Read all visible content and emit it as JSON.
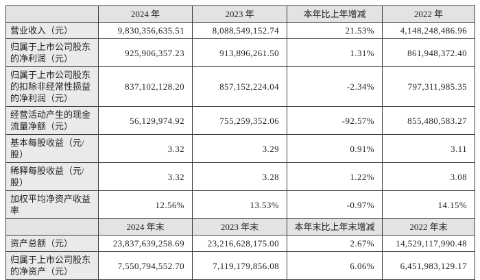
{
  "colors": {
    "border": "#3a3a3a",
    "header_bg": "#e3e3e3",
    "label_bg": "#eaeaea",
    "cell_bg": "#ffffff",
    "page_bg": "#ffffff"
  },
  "table": {
    "header1": {
      "col0": "",
      "cols": [
        "2024 年",
        "2023 年",
        "本年比上年增减",
        "2022 年"
      ]
    },
    "section1_rows": [
      {
        "label": "营业收入（元）",
        "values": [
          "9,830,356,635.51",
          "8,088,549,152.74",
          "21.53%",
          "4,148,248,486.96"
        ]
      },
      {
        "label": "归属于上市公司股东的净利润（元）",
        "values": [
          "925,906,357.23",
          "913,896,261.50",
          "1.31%",
          "861,948,372.40"
        ]
      },
      {
        "label": "归属于上市公司股东的扣除非经常性损益的净利润（元）",
        "values": [
          "837,102,128.20",
          "857,152,224.04",
          "-2.34%",
          "797,311,985.35"
        ]
      },
      {
        "label": "经营活动产生的现金流量净额（元）",
        "values": [
          "56,129,974.92",
          "755,259,352.06",
          "-92.57%",
          "855,480,583.27"
        ]
      },
      {
        "label": "基本每股收益（元/股）",
        "values": [
          "3.32",
          "3.29",
          "0.91%",
          "3.11"
        ]
      },
      {
        "label": "稀释每股收益（元/股）",
        "values": [
          "3.32",
          "3.28",
          "1.22%",
          "3.08"
        ]
      },
      {
        "label": "加权平均净资产收益率",
        "values": [
          "12.56%",
          "13.53%",
          "-0.97%",
          "14.15%"
        ]
      }
    ],
    "header2": {
      "col0": "",
      "cols": [
        "2024 年末",
        "2023 年末",
        "本年末比上年末增减",
        "2022 年末"
      ]
    },
    "section2_rows": [
      {
        "label": "资产总额（元）",
        "values": [
          "23,837,639,258.69",
          "23,216,628,175.00",
          "2.67%",
          "14,529,117,990.48"
        ]
      },
      {
        "label": "归属于上市公司股东的净资产（元）",
        "values": [
          "7,550,794,552.70",
          "7,119,179,856.08",
          "6.06%",
          "6,451,983,129.17"
        ]
      }
    ]
  }
}
